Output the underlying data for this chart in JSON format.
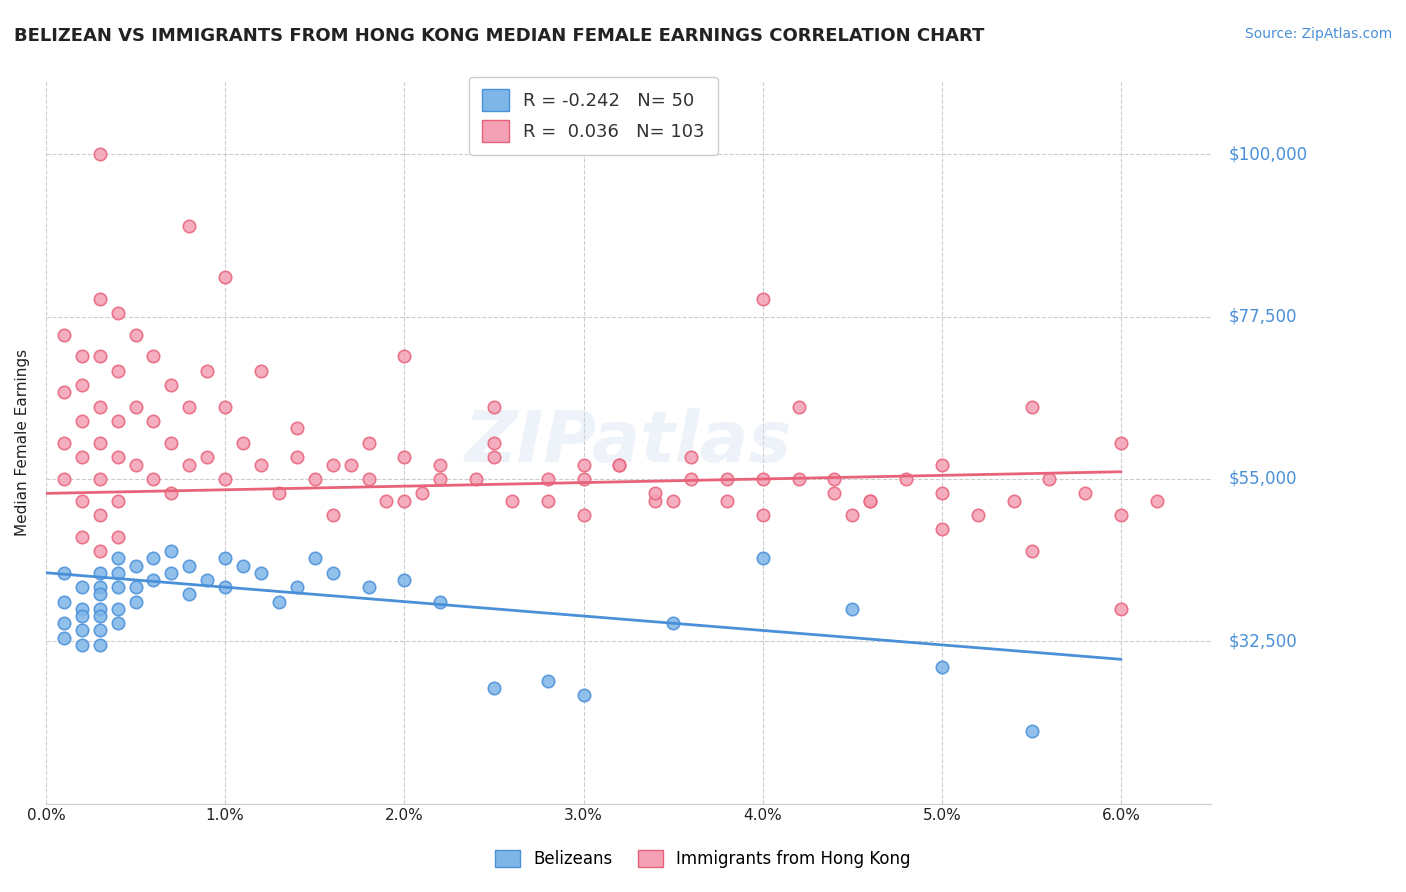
{
  "title": "BELIZEAN VS IMMIGRANTS FROM HONG KONG MEDIAN FEMALE EARNINGS CORRELATION CHART",
  "source": "Source: ZipAtlas.com",
  "xlabel": "",
  "ylabel": "Median Female Earnings",
  "ytick_labels": [
    "$32,500",
    "$55,000",
    "$77,500",
    "$100,000"
  ],
  "ytick_values": [
    32500,
    55000,
    77500,
    100000
  ],
  "ylim": [
    10000,
    110000
  ],
  "xlim": [
    0.0,
    0.065
  ],
  "xtick_values": [
    0.0,
    0.01,
    0.02,
    0.03,
    0.04,
    0.05,
    0.06
  ],
  "xtick_labels": [
    "0.0%",
    "1.0%",
    "2.0%",
    "3.0%",
    "4.0%",
    "5.0%",
    "6.0%"
  ],
  "legend_labels": [
    "Belizeans",
    "Immigrants from Hong Kong"
  ],
  "legend_r": [
    -0.242,
    0.036
  ],
  "legend_n": [
    50,
    103
  ],
  "blue_color": "#7EB6E8",
  "pink_color": "#F4A0B5",
  "blue_line_color": "#4A90D9",
  "pink_line_color": "#E8637A",
  "title_color": "#222222",
  "ylabel_color": "#222222",
  "ytick_color": "#4A90D9",
  "xtick_color": "#222222",
  "source_color": "#4A90D9",
  "watermark": "ZIPatlas",
  "blue_scatter_x": [
    0.001,
    0.001,
    0.001,
    0.001,
    0.002,
    0.002,
    0.002,
    0.002,
    0.002,
    0.003,
    0.003,
    0.003,
    0.003,
    0.003,
    0.003,
    0.003,
    0.004,
    0.004,
    0.004,
    0.004,
    0.004,
    0.005,
    0.005,
    0.005,
    0.006,
    0.006,
    0.007,
    0.007,
    0.008,
    0.008,
    0.009,
    0.01,
    0.01,
    0.011,
    0.012,
    0.013,
    0.014,
    0.015,
    0.016,
    0.018,
    0.02,
    0.022,
    0.025,
    0.028,
    0.03,
    0.035,
    0.04,
    0.045,
    0.05,
    0.055
  ],
  "blue_scatter_y": [
    42000,
    38000,
    35000,
    33000,
    40000,
    37000,
    36000,
    34000,
    32000,
    42000,
    40000,
    39000,
    37000,
    36000,
    34000,
    32000,
    44000,
    42000,
    40000,
    37000,
    35000,
    43000,
    40000,
    38000,
    44000,
    41000,
    45000,
    42000,
    43000,
    39000,
    41000,
    44000,
    40000,
    43000,
    42000,
    38000,
    40000,
    44000,
    42000,
    40000,
    41000,
    38000,
    26000,
    27000,
    25000,
    35000,
    44000,
    37000,
    29000,
    20000
  ],
  "pink_scatter_x": [
    0.001,
    0.001,
    0.001,
    0.001,
    0.002,
    0.002,
    0.002,
    0.002,
    0.002,
    0.002,
    0.003,
    0.003,
    0.003,
    0.003,
    0.003,
    0.003,
    0.003,
    0.004,
    0.004,
    0.004,
    0.004,
    0.004,
    0.004,
    0.005,
    0.005,
    0.005,
    0.006,
    0.006,
    0.006,
    0.007,
    0.007,
    0.007,
    0.008,
    0.008,
    0.009,
    0.009,
    0.01,
    0.01,
    0.011,
    0.012,
    0.013,
    0.014,
    0.015,
    0.016,
    0.017,
    0.018,
    0.019,
    0.02,
    0.021,
    0.022,
    0.024,
    0.025,
    0.026,
    0.028,
    0.03,
    0.032,
    0.034,
    0.036,
    0.038,
    0.04,
    0.042,
    0.044,
    0.046,
    0.05,
    0.055,
    0.06,
    0.008,
    0.01,
    0.012,
    0.014,
    0.016,
    0.018,
    0.02,
    0.022,
    0.025,
    0.028,
    0.03,
    0.032,
    0.034,
    0.036,
    0.038,
    0.04,
    0.042,
    0.044,
    0.046,
    0.048,
    0.05,
    0.052,
    0.054,
    0.056,
    0.058,
    0.06,
    0.062,
    0.02,
    0.025,
    0.03,
    0.035,
    0.04,
    0.045,
    0.05,
    0.055,
    0.06,
    0.003
  ],
  "pink_scatter_y": [
    75000,
    67000,
    60000,
    55000,
    72000,
    68000,
    63000,
    58000,
    52000,
    47000,
    80000,
    72000,
    65000,
    60000,
    55000,
    50000,
    45000,
    78000,
    70000,
    63000,
    58000,
    52000,
    47000,
    75000,
    65000,
    57000,
    72000,
    63000,
    55000,
    68000,
    60000,
    53000,
    65000,
    57000,
    70000,
    58000,
    65000,
    55000,
    60000,
    57000,
    53000,
    58000,
    55000,
    50000,
    57000,
    55000,
    52000,
    58000,
    53000,
    57000,
    55000,
    60000,
    52000,
    55000,
    50000,
    57000,
    52000,
    58000,
    55000,
    80000,
    65000,
    55000,
    52000,
    57000,
    65000,
    60000,
    90000,
    83000,
    70000,
    62000,
    57000,
    60000,
    52000,
    55000,
    58000,
    52000,
    55000,
    57000,
    53000,
    55000,
    52000,
    50000,
    55000,
    53000,
    52000,
    55000,
    53000,
    50000,
    52000,
    55000,
    53000,
    50000,
    52000,
    72000,
    65000,
    57000,
    52000,
    55000,
    50000,
    48000,
    45000,
    37000,
    100000
  ],
  "blue_trend_x": [
    0.0,
    0.06
  ],
  "blue_trend_y": [
    42000,
    30000
  ],
  "pink_trend_x": [
    0.0,
    0.06
  ],
  "pink_trend_y": [
    53000,
    56000
  ],
  "background_color": "#FFFFFF",
  "grid_color": "#CCCCCC"
}
